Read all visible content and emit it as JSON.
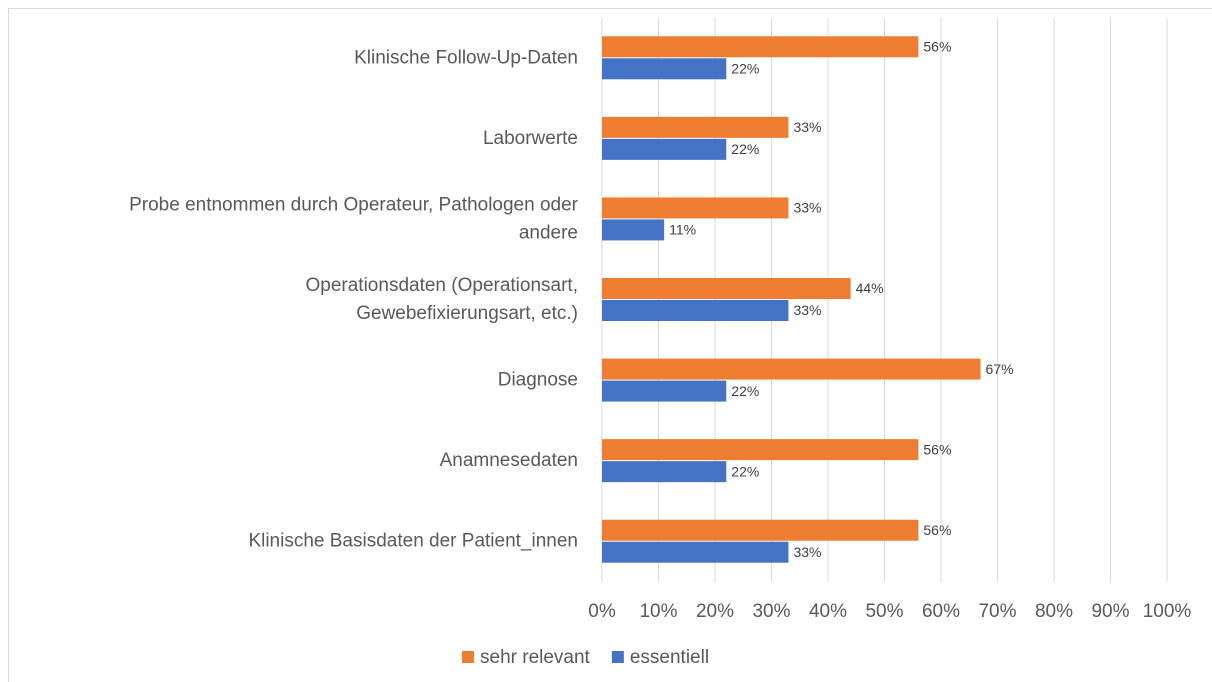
{
  "chart_data": {
    "type": "bar",
    "orientation": "horizontal",
    "categories": [
      [
        "Klinische Follow-Up-Daten"
      ],
      [
        "Laborwerte"
      ],
      [
        "Probe entnommen durch Operateur, Pathologen oder",
        "andere"
      ],
      [
        "Operationsdaten (Operationsart,",
        "Gewebefixierungsart, etc.)"
      ],
      [
        "Diagnose"
      ],
      [
        "Anamnesedaten"
      ],
      [
        "Klinische Basisdaten der Patient_innen"
      ]
    ],
    "series": [
      {
        "name": "sehr relevant",
        "color": "#ed7d31",
        "values": [
          56,
          33,
          33,
          44,
          67,
          56,
          56
        ],
        "value_labels": [
          "56%",
          "33%",
          "33%",
          "44%",
          "67%",
          "56%",
          "56%"
        ]
      },
      {
        "name": "essentiell",
        "color": "#4472c4",
        "values": [
          22,
          22,
          11,
          33,
          22,
          22,
          33
        ],
        "value_labels": [
          "22%",
          "22%",
          "11%",
          "33%",
          "22%",
          "22%",
          "33%"
        ]
      }
    ],
    "xlim": [
      0,
      100
    ],
    "xticks": [
      {
        "value": 0,
        "label": "0%"
      },
      {
        "value": 10,
        "label": "10%"
      },
      {
        "value": 20,
        "label": "20%"
      },
      {
        "value": 30,
        "label": "30%"
      },
      {
        "value": 40,
        "label": "40%"
      },
      {
        "value": 50,
        "label": "50%"
      },
      {
        "value": 60,
        "label": "60%"
      },
      {
        "value": 70,
        "label": "70%"
      },
      {
        "value": 80,
        "label": "80%"
      },
      {
        "value": 90,
        "label": "90%"
      },
      {
        "value": 100,
        "label": "100%"
      }
    ],
    "grid": true,
    "legend": "bottom"
  }
}
